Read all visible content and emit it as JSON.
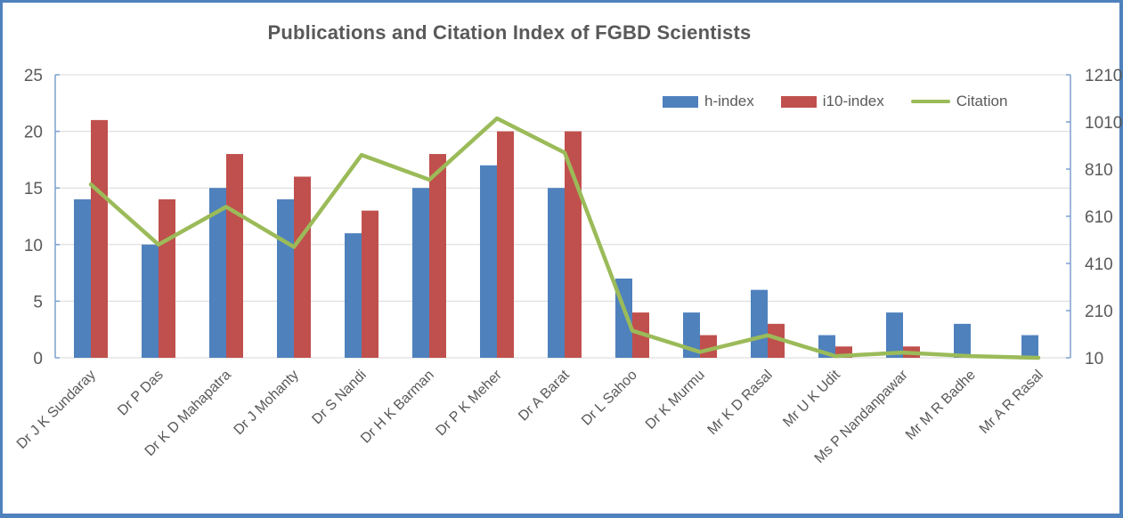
{
  "chart_data": {
    "type": "combo-bar-line",
    "title": "Publications and Citation Index of FGBD Scientists",
    "categories": [
      "Dr J K Sundaray",
      "Dr P Das",
      "Dr K D Mahapatra",
      "Dr J Mohanty",
      "Dr S Nandi",
      "Dr H K Barman",
      "Dr P K Meher",
      "Dr A Barat",
      "Dr L Sahoo",
      "Dr K Murmu",
      "Mr K D Rasal",
      "Mr U K Udit",
      "Ms P Nandanpawar",
      "Mr M R Badhe",
      "Mr A R Rasal"
    ],
    "series": [
      {
        "name": "h-index",
        "type": "bar",
        "axis": "left",
        "color": "#4F81BD",
        "values": [
          14,
          10,
          15,
          14,
          11,
          15,
          17,
          15,
          7,
          4,
          6,
          2,
          4,
          3,
          2
        ]
      },
      {
        "name": "i10-index",
        "type": "bar",
        "axis": "left",
        "color": "#C0504D",
        "values": [
          21,
          14,
          18,
          16,
          13,
          18,
          20,
          20,
          4,
          2,
          3,
          1,
          1,
          0,
          0
        ]
      },
      {
        "name": "Citation",
        "type": "line",
        "axis": "right",
        "color": "#9BBB59",
        "values": [
          745,
          490,
          650,
          480,
          870,
          765,
          1025,
          880,
          125,
          35,
          105,
          17,
          32,
          17,
          10
        ]
      }
    ],
    "left_axis": {
      "min": 0,
      "max": 25,
      "step": 5,
      "tick_values": [
        0,
        5,
        10,
        15,
        20,
        25
      ]
    },
    "right_axis": {
      "min": 10,
      "max": 1210,
      "step": 200,
      "tick_values": [
        10,
        210,
        410,
        610,
        810,
        1010,
        1210
      ]
    },
    "legend": {
      "position": "top-right"
    },
    "grid": true,
    "style": {
      "frame_border_color": "#4F81BD",
      "text_color": "#595959",
      "gridline_color": "#D9D9D9",
      "axis_line_color": "#7BA0CD",
      "background": "#FFFFFF"
    }
  }
}
